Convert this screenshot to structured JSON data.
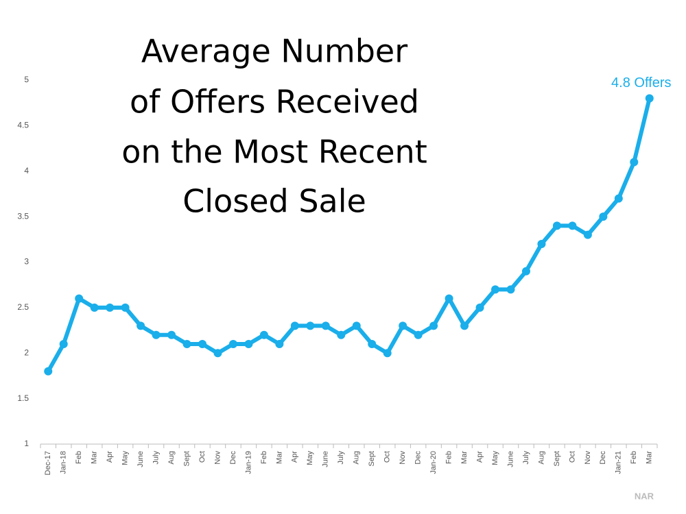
{
  "chart_data": {
    "type": "line",
    "title": [
      "Average Number",
      "of Offers Received",
      "on the Most Recent",
      "Closed Sale"
    ],
    "categories": [
      "Dec-17",
      "Jan-18",
      "Feb",
      "Mar",
      "Apr",
      "May",
      "June",
      "July",
      "Aug",
      "Sept",
      "Oct",
      "Nov",
      "Dec",
      "Jan-19",
      "Feb",
      "Mar",
      "Apr",
      "May",
      "June",
      "July",
      "Aug",
      "Sept",
      "Oct",
      "Nov",
      "Dec",
      "Jan-20",
      "Feb",
      "Mar",
      "Apr",
      "May",
      "June",
      "July",
      "Aug",
      "Sept",
      "Oct",
      "Nov",
      "Dec",
      "Jan-21",
      "Feb",
      "Mar"
    ],
    "values": [
      1.8,
      2.1,
      2.6,
      2.5,
      2.5,
      2.5,
      2.3,
      2.2,
      2.2,
      2.1,
      2.1,
      2.0,
      2.1,
      2.1,
      2.2,
      2.1,
      2.3,
      2.3,
      2.3,
      2.2,
      2.3,
      2.1,
      2.0,
      2.3,
      2.2,
      2.3,
      2.6,
      2.3,
      2.5,
      2.7,
      2.7,
      2.9,
      3.2,
      3.4,
      3.4,
      3.3,
      3.5,
      3.7,
      4.1,
      4.8
    ],
    "color": "#1aaeea",
    "ylim": [
      1,
      5
    ],
    "yticks": [
      1,
      1.5,
      2,
      2.5,
      3,
      3.5,
      4,
      4.5,
      5
    ],
    "grid": false,
    "annotation": "4.8 Offers",
    "source": "NAR"
  }
}
